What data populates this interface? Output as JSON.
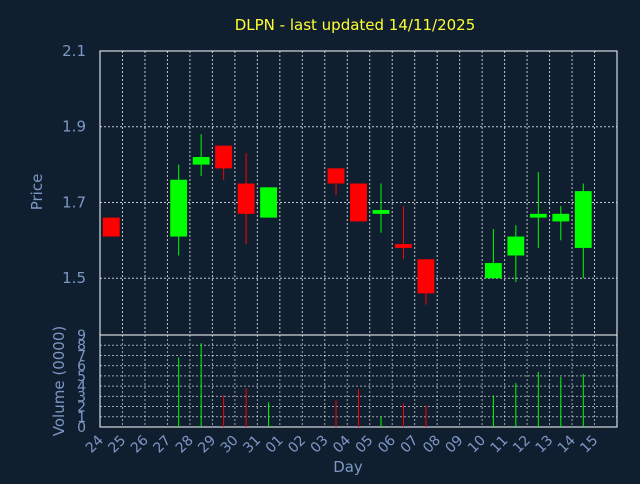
{
  "chart_data": [
    {
      "type": "candlestick",
      "title": "DLPN - last updated 14/11/2025",
      "ylabel": "Price",
      "ylim": [
        1.35,
        2.1
      ],
      "yticks": [
        1.5,
        1.7,
        1.9,
        2.1
      ],
      "grid": true,
      "colors": {
        "up": "#00ff00",
        "down": "#ff0000",
        "grid": "#ffffff",
        "axis_text": "#7f97c4",
        "title": "#ffff33",
        "background": "#0f1f30"
      },
      "candles": [
        {
          "day": "24",
          "open": 1.66,
          "close": 1.61,
          "high": 1.66,
          "low": 1.61
        },
        {
          "day": "27",
          "open": 1.61,
          "close": 1.76,
          "high": 1.8,
          "low": 1.56
        },
        {
          "day": "28",
          "open": 1.8,
          "close": 1.82,
          "high": 1.88,
          "low": 1.77
        },
        {
          "day": "29",
          "open": 1.85,
          "close": 1.79,
          "high": 1.85,
          "low": 1.76
        },
        {
          "day": "30",
          "open": 1.75,
          "close": 1.67,
          "high": 1.83,
          "low": 1.59
        },
        {
          "day": "31",
          "open": 1.66,
          "close": 1.74,
          "high": 1.74,
          "low": 1.66
        },
        {
          "day": "03",
          "open": 1.79,
          "close": 1.75,
          "high": 1.79,
          "low": 1.72
        },
        {
          "day": "04",
          "open": 1.75,
          "close": 1.65,
          "high": 1.75,
          "low": 1.65
        },
        {
          "day": "05",
          "open": 1.67,
          "close": 1.68,
          "high": 1.75,
          "low": 1.62
        },
        {
          "day": "06",
          "open": 1.59,
          "close": 1.58,
          "high": 1.69,
          "low": 1.55
        },
        {
          "day": "07",
          "open": 1.55,
          "close": 1.46,
          "high": 1.55,
          "low": 1.43
        },
        {
          "day": "10",
          "open": 1.5,
          "close": 1.54,
          "high": 1.63,
          "low": 1.5
        },
        {
          "day": "11",
          "open": 1.56,
          "close": 1.61,
          "high": 1.64,
          "low": 1.49
        },
        {
          "day": "12",
          "open": 1.66,
          "close": 1.67,
          "high": 1.78,
          "low": 1.58
        },
        {
          "day": "13",
          "open": 1.65,
          "close": 1.67,
          "high": 1.69,
          "low": 1.6
        },
        {
          "day": "14",
          "open": 1.58,
          "close": 1.73,
          "high": 1.75,
          "low": 1.5
        }
      ]
    },
    {
      "type": "bar",
      "ylabel": "Volume (0000)",
      "ylim": [
        0,
        9
      ],
      "yticks": [
        0,
        1,
        2,
        3,
        4,
        5,
        6,
        7,
        8,
        9
      ],
      "xlabel": "Day",
      "categories": [
        "24",
        "25",
        "26",
        "27",
        "28",
        "29",
        "30",
        "31",
        "01",
        "02",
        "03",
        "04",
        "05",
        "06",
        "07",
        "08",
        "09",
        "10",
        "11",
        "12",
        "13",
        "14",
        "15"
      ],
      "bars": [
        {
          "day": "27",
          "value": 6.8,
          "color": "#00ff00"
        },
        {
          "day": "28",
          "value": 8.2,
          "color": "#00ff00"
        },
        {
          "day": "29",
          "value": 3.1,
          "color": "#ff0000"
        },
        {
          "day": "30",
          "value": 3.8,
          "color": "#ff0000"
        },
        {
          "day": "31",
          "value": 2.4,
          "color": "#00ff00"
        },
        {
          "day": "03",
          "value": 2.6,
          "color": "#ff0000"
        },
        {
          "day": "04",
          "value": 3.7,
          "color": "#ff0000"
        },
        {
          "day": "05",
          "value": 1.0,
          "color": "#00ff00"
        },
        {
          "day": "06",
          "value": 2.3,
          "color": "#ff0000"
        },
        {
          "day": "07",
          "value": 2.1,
          "color": "#ff0000"
        },
        {
          "day": "10",
          "value": 3.1,
          "color": "#00ff00"
        },
        {
          "day": "11",
          "value": 4.3,
          "color": "#00ff00"
        },
        {
          "day": "12",
          "value": 5.4,
          "color": "#00ff00"
        },
        {
          "day": "13",
          "value": 4.9,
          "color": "#00ff00"
        },
        {
          "day": "14",
          "value": 5.2,
          "color": "#00ff00"
        }
      ]
    }
  ]
}
